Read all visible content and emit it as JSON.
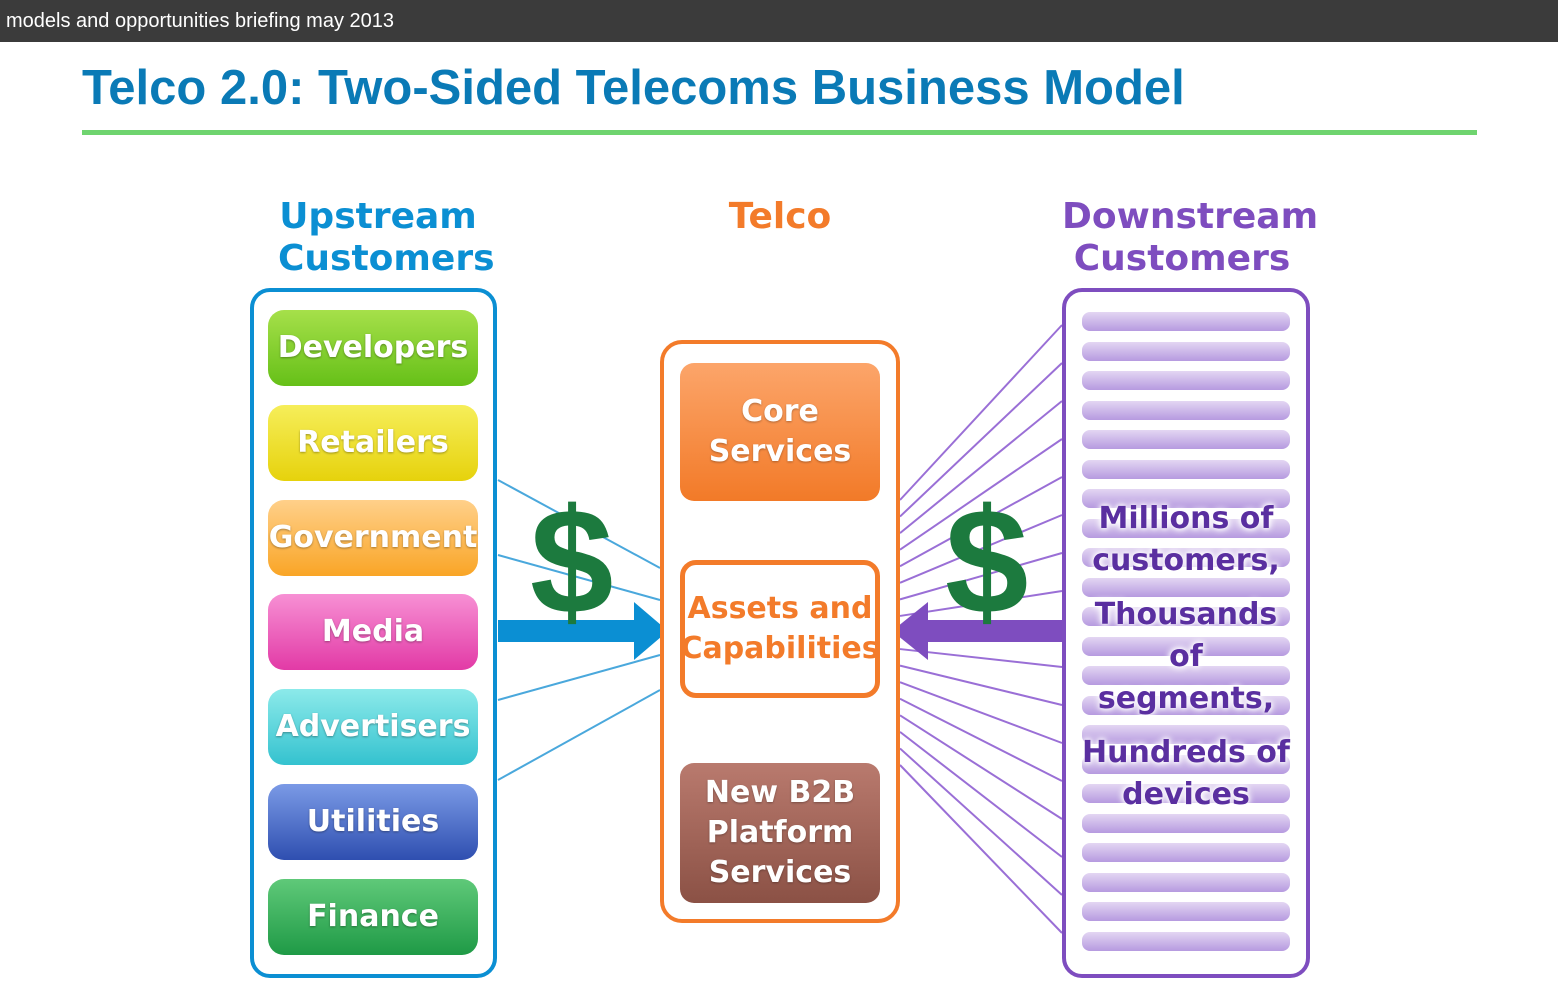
{
  "window": {
    "title": "models and opportunities briefing may 2013"
  },
  "slide": {
    "title": "Telco 2.0: Two-Sided Telecoms Business Model"
  },
  "upstream": {
    "heading": "Upstream\nCustomers",
    "items": [
      {
        "label": "Developers"
      },
      {
        "label": "Retailers"
      },
      {
        "label": "Government"
      },
      {
        "label": "Media"
      },
      {
        "label": "Advertisers"
      },
      {
        "label": "Utilities"
      },
      {
        "label": "Finance"
      }
    ]
  },
  "telco": {
    "heading": "Telco",
    "core": "Core\nServices",
    "assets": "Assets and\nCapabilities",
    "b2b": "New B2B\nPlatform\nServices"
  },
  "downstream": {
    "heading": "Downstream\nCustomers",
    "lines": [
      "Millions of",
      "customers,",
      "Thousands of",
      "segments,",
      "Hundreds of",
      "devices"
    ]
  },
  "dollar_left": "$",
  "dollar_right": "$",
  "colors": {
    "upstream": "#0b8fd3",
    "telco": "#f37b2a",
    "downstream": "#7e4dbf",
    "dollar": "#1c7a3e",
    "title": "#0a7ab6",
    "rule": "#6fd46f"
  }
}
